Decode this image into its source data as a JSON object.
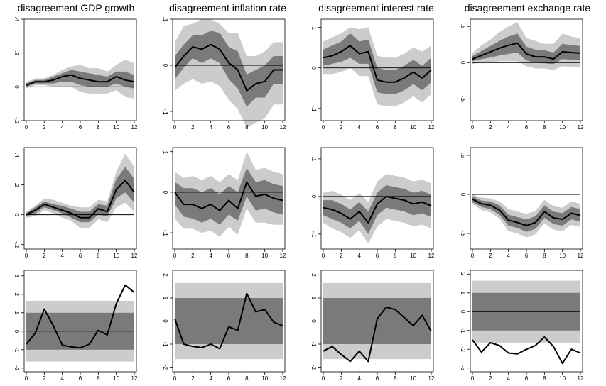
{
  "column_titles": [
    "disagreement GDP growth",
    "disagreement inflation rate",
    "disagreement interest rate",
    "disagreement exchange rate"
  ],
  "colors": {
    "outer_band": "#cccccc",
    "inner_band": "#7a7a7a",
    "line": "#000000",
    "zero": "#000000"
  },
  "chart_data": [
    {
      "type": "area",
      "row": 0,
      "col": 0,
      "x": [
        0,
        1,
        2,
        3,
        4,
        5,
        6,
        7,
        8,
        9,
        10,
        11,
        12
      ],
      "ylim": [
        -0.2,
        0.4
      ],
      "yticks": [
        -0.2,
        0,
        0.2,
        0.4
      ],
      "ytick_labels": [
        "-.2",
        "0",
        ".2",
        ".4"
      ],
      "xticks": [
        0,
        2,
        4,
        6,
        8,
        10,
        12
      ],
      "xtick_labels": [
        "0",
        "2",
        "4",
        "6",
        "8",
        "10",
        "12"
      ],
      "y": [
        0.01,
        0.03,
        0.03,
        0.04,
        0.06,
        0.07,
        0.05,
        0.04,
        0.03,
        0.03,
        0.06,
        0.04,
        0.03
      ],
      "inner_lo": [
        0.0,
        0.02,
        0.02,
        0.02,
        0.03,
        0.03,
        0.01,
        0.0,
        0.0,
        0.0,
        0.02,
        0.0,
        -0.01
      ],
      "inner_hi": [
        0.02,
        0.04,
        0.04,
        0.06,
        0.08,
        0.1,
        0.09,
        0.08,
        0.07,
        0.06,
        0.09,
        0.09,
        0.07
      ],
      "outer_lo": [
        -0.01,
        0.01,
        0.01,
        0.0,
        0.0,
        0.0,
        -0.03,
        -0.04,
        -0.04,
        -0.04,
        -0.02,
        -0.06,
        -0.07
      ],
      "outer_hi": [
        0.03,
        0.05,
        0.05,
        0.07,
        0.1,
        0.12,
        0.13,
        0.11,
        0.11,
        0.09,
        0.13,
        0.16,
        0.14
      ]
    },
    {
      "type": "area",
      "row": 0,
      "col": 1,
      "x": [
        0,
        1,
        2,
        3,
        4,
        5,
        6,
        7,
        8,
        9,
        10,
        11,
        12
      ],
      "ylim": [
        -0.12,
        0.1
      ],
      "yticks": [
        -0.1,
        0,
        0.1
      ],
      "ytick_labels": [
        "-.1",
        "0",
        ".1"
      ],
      "xticks": [
        0,
        2,
        4,
        6,
        8,
        10,
        12
      ],
      "xtick_labels": [
        "0",
        "2",
        "4",
        "6",
        "8",
        "10",
        "12"
      ],
      "y": [
        -0.005,
        0.02,
        0.04,
        0.035,
        0.045,
        0.035,
        0.005,
        -0.01,
        -0.055,
        -0.04,
        -0.035,
        -0.01,
        -0.01
      ],
      "inner_lo": [
        -0.03,
        -0.005,
        0.015,
        0.005,
        0.015,
        0.005,
        -0.03,
        -0.05,
        -0.09,
        -0.07,
        -0.07,
        -0.04,
        -0.04
      ],
      "inner_hi": [
        0.02,
        0.045,
        0.065,
        0.065,
        0.075,
        0.07,
        0.04,
        0.03,
        -0.02,
        -0.01,
        0.0,
        0.02,
        0.02
      ],
      "outer_lo": [
        -0.055,
        -0.04,
        -0.03,
        -0.04,
        -0.035,
        -0.045,
        -0.075,
        -0.095,
        -0.135,
        -0.125,
        -0.115,
        -0.085,
        -0.085
      ],
      "outer_hi": [
        0.05,
        0.085,
        0.09,
        0.1,
        0.1,
        0.09,
        0.07,
        0.07,
        0.02,
        0.02,
        0.03,
        0.05,
        0.05
      ]
    },
    {
      "type": "area",
      "row": 0,
      "col": 2,
      "x": [
        0,
        1,
        2,
        3,
        4,
        5,
        6,
        7,
        8,
        9,
        10,
        11,
        12
      ],
      "ylim": [
        -0.13,
        0.12
      ],
      "yticks": [
        -0.1,
        0,
        0.1
      ],
      "ytick_labels": [
        "-.1",
        "0",
        ".1"
      ],
      "xticks": [
        0,
        2,
        4,
        6,
        8,
        10,
        12
      ],
      "xtick_labels": [
        "0",
        "2",
        "4",
        "6",
        "8",
        "10",
        "12"
      ],
      "y": [
        0.025,
        0.03,
        0.04,
        0.055,
        0.035,
        0.04,
        -0.03,
        -0.035,
        -0.035,
        -0.025,
        -0.01,
        -0.025,
        -0.005
      ],
      "inner_lo": [
        0.005,
        0.01,
        0.015,
        0.025,
        0.01,
        0.01,
        -0.06,
        -0.065,
        -0.065,
        -0.055,
        -0.04,
        -0.055,
        -0.035
      ],
      "inner_hi": [
        0.045,
        0.055,
        0.065,
        0.085,
        0.065,
        0.07,
        0.0,
        -0.005,
        -0.005,
        0.005,
        0.02,
        0.005,
        0.025
      ],
      "outer_lo": [
        -0.015,
        -0.015,
        -0.01,
        0.0,
        -0.02,
        -0.02,
        -0.09,
        -0.095,
        -0.095,
        -0.085,
        -0.07,
        -0.085,
        -0.065
      ],
      "outer_hi": [
        0.065,
        0.075,
        0.085,
        0.1,
        0.095,
        0.1,
        0.03,
        0.025,
        0.025,
        0.035,
        0.05,
        0.04,
        0.055
      ]
    },
    {
      "type": "area",
      "row": 0,
      "col": 3,
      "x": [
        0,
        1,
        2,
        3,
        4,
        5,
        6,
        7,
        8,
        9,
        10,
        11,
        12
      ],
      "ylim": [
        -0.8,
        0.6
      ],
      "yticks": [
        -0.5,
        0,
        0.5
      ],
      "ytick_labels": [
        "-.5",
        "0",
        ".5"
      ],
      "xticks": [
        0,
        2,
        4,
        6,
        8,
        10,
        12
      ],
      "xtick_labels": [
        "0",
        "2",
        "4",
        "6",
        "8",
        "10",
        "12"
      ],
      "y": [
        0.05,
        0.1,
        0.15,
        0.2,
        0.24,
        0.27,
        0.12,
        0.08,
        0.08,
        0.05,
        0.15,
        0.14,
        0.13
      ],
      "inner_lo": [
        0.02,
        0.05,
        0.07,
        0.1,
        0.12,
        0.14,
        0.03,
        0.0,
        -0.01,
        -0.02,
        0.05,
        0.04,
        0.04
      ],
      "inner_hi": [
        0.09,
        0.16,
        0.23,
        0.3,
        0.36,
        0.4,
        0.22,
        0.18,
        0.17,
        0.14,
        0.26,
        0.24,
        0.23
      ],
      "outer_lo": [
        -0.02,
        0.0,
        0.0,
        0.02,
        0.02,
        0.02,
        -0.05,
        -0.08,
        -0.08,
        -0.1,
        -0.05,
        -0.06,
        -0.06
      ],
      "outer_hi": [
        0.13,
        0.24,
        0.32,
        0.42,
        0.5,
        0.56,
        0.34,
        0.3,
        0.26,
        0.26,
        0.4,
        0.36,
        0.34
      ]
    },
    {
      "type": "area",
      "row": 1,
      "col": 0,
      "x": [
        0,
        1,
        2,
        3,
        4,
        5,
        6,
        7,
        8,
        9,
        10,
        11,
        12
      ],
      "ylim": [
        -0.23,
        0.45
      ],
      "yticks": [
        -0.2,
        0,
        0.2,
        0.4
      ],
      "ytick_labels": [
        "-.2",
        "0",
        ".2",
        ".4"
      ],
      "xticks": [
        0,
        2,
        4,
        6,
        8,
        10,
        12
      ],
      "xtick_labels": [
        "0",
        "2",
        "4",
        "6",
        "8",
        "10",
        "12"
      ],
      "y": [
        0.0,
        0.03,
        0.07,
        0.05,
        0.03,
        0.01,
        -0.02,
        -0.02,
        0.04,
        0.02,
        0.17,
        0.23,
        0.15
      ],
      "inner_lo": [
        -0.01,
        0.01,
        0.05,
        0.03,
        0.01,
        -0.02,
        -0.05,
        -0.05,
        0.0,
        -0.01,
        0.11,
        0.15,
        0.08
      ],
      "inner_hi": [
        0.01,
        0.05,
        0.09,
        0.07,
        0.06,
        0.04,
        0.02,
        0.02,
        0.07,
        0.06,
        0.24,
        0.32,
        0.24
      ],
      "outer_lo": [
        -0.02,
        -0.01,
        0.03,
        0.01,
        -0.02,
        -0.04,
        -0.09,
        -0.09,
        -0.03,
        -0.05,
        0.05,
        0.08,
        0.02
      ],
      "outer_hi": [
        0.02,
        0.06,
        0.11,
        0.1,
        0.08,
        0.06,
        0.05,
        0.05,
        0.1,
        0.09,
        0.29,
        0.41,
        0.32
      ]
    },
    {
      "type": "area",
      "row": 1,
      "col": 1,
      "x": [
        0,
        1,
        2,
        3,
        4,
        5,
        6,
        7,
        8,
        9,
        10,
        11,
        12
      ],
      "ylim": [
        -0.14,
        0.11
      ],
      "yticks": [
        -0.1,
        0,
        0.1
      ],
      "ytick_labels": [
        "-.1",
        "0",
        ".1"
      ],
      "xticks": [
        0,
        2,
        4,
        6,
        8,
        10,
        12
      ],
      "xtick_labels": [
        "0",
        "2",
        "4",
        "6",
        "8",
        "10",
        "12"
      ],
      "y": [
        0.0,
        -0.03,
        -0.03,
        -0.04,
        -0.03,
        -0.045,
        -0.02,
        -0.04,
        0.025,
        -0.01,
        -0.005,
        -0.015,
        -0.02
      ],
      "inner_lo": [
        -0.03,
        -0.06,
        -0.065,
        -0.075,
        -0.065,
        -0.08,
        -0.055,
        -0.07,
        -0.01,
        -0.045,
        -0.04,
        -0.05,
        -0.055
      ],
      "inner_hi": [
        0.025,
        0.01,
        0.01,
        0.0,
        0.01,
        -0.005,
        0.015,
        0.0,
        0.06,
        0.025,
        0.03,
        0.02,
        0.015
      ],
      "outer_lo": [
        -0.065,
        -0.09,
        -0.09,
        -0.1,
        -0.095,
        -0.11,
        -0.085,
        -0.105,
        -0.04,
        -0.075,
        -0.075,
        -0.08,
        -0.08
      ],
      "outer_hi": [
        0.05,
        0.035,
        0.04,
        0.03,
        0.04,
        0.025,
        0.045,
        0.03,
        0.1,
        0.055,
        0.06,
        0.05,
        0.045
      ]
    },
    {
      "type": "area",
      "row": 1,
      "col": 2,
      "x": [
        0,
        1,
        2,
        3,
        4,
        5,
        6,
        7,
        8,
        9,
        10,
        11,
        12
      ],
      "ylim": [
        -0.14,
        0.13
      ],
      "yticks": [
        -0.1,
        0,
        0.1
      ],
      "ytick_labels": [
        "-.1",
        "0",
        ".1"
      ],
      "xticks": [
        0,
        2,
        4,
        6,
        8,
        10,
        12
      ],
      "xtick_labels": [
        "0",
        "2",
        "4",
        "6",
        "8",
        "10",
        "12"
      ],
      "y": [
        -0.03,
        -0.035,
        -0.045,
        -0.06,
        -0.04,
        -0.07,
        -0.02,
        0.0,
        -0.005,
        -0.01,
        -0.02,
        -0.015,
        -0.025
      ],
      "inner_lo": [
        -0.05,
        -0.06,
        -0.07,
        -0.085,
        -0.065,
        -0.1,
        -0.05,
        -0.03,
        -0.035,
        -0.04,
        -0.05,
        -0.045,
        -0.055
      ],
      "inner_hi": [
        -0.01,
        -0.01,
        -0.02,
        -0.035,
        -0.015,
        -0.04,
        0.01,
        0.03,
        0.025,
        0.02,
        0.01,
        0.015,
        0.005
      ],
      "outer_lo": [
        -0.07,
        -0.085,
        -0.095,
        -0.11,
        -0.09,
        -0.125,
        -0.08,
        -0.06,
        -0.065,
        -0.07,
        -0.08,
        -0.075,
        -0.085
      ],
      "outer_hi": [
        0.01,
        0.015,
        0.005,
        -0.01,
        0.01,
        -0.015,
        0.04,
        0.06,
        0.055,
        0.05,
        0.04,
        0.045,
        0.035
      ]
    },
    {
      "type": "area",
      "row": 1,
      "col": 3,
      "x": [
        0,
        1,
        2,
        3,
        4,
        5,
        6,
        7,
        8,
        9,
        10,
        11,
        12
      ],
      "ylim": [
        -0.7,
        0.6
      ],
      "yticks": [
        -0.5,
        0,
        0.5
      ],
      "ytick_labels": [
        "-.5",
        "0",
        ".5"
      ],
      "xticks": [
        0,
        2,
        4,
        6,
        8,
        10,
        12
      ],
      "xtick_labels": [
        "0",
        "2",
        "4",
        "6",
        "8",
        "10",
        "12"
      ],
      "y": [
        -0.06,
        -0.12,
        -0.14,
        -0.2,
        -0.33,
        -0.36,
        -0.4,
        -0.36,
        -0.22,
        -0.3,
        -0.32,
        -0.24,
        -0.27
      ],
      "inner_lo": [
        -0.1,
        -0.16,
        -0.19,
        -0.26,
        -0.4,
        -0.43,
        -0.48,
        -0.44,
        -0.3,
        -0.38,
        -0.4,
        -0.32,
        -0.35
      ],
      "inner_hi": [
        -0.02,
        -0.08,
        -0.09,
        -0.14,
        -0.26,
        -0.29,
        -0.32,
        -0.28,
        -0.14,
        -0.22,
        -0.24,
        -0.16,
        -0.19
      ],
      "outer_lo": [
        -0.12,
        -0.2,
        -0.23,
        -0.31,
        -0.47,
        -0.5,
        -0.55,
        -0.51,
        -0.37,
        -0.45,
        -0.47,
        -0.39,
        -0.42
      ],
      "outer_hi": [
        0.0,
        -0.04,
        -0.05,
        -0.09,
        -0.19,
        -0.22,
        -0.25,
        -0.21,
        -0.07,
        -0.15,
        -0.17,
        -0.09,
        -0.12
      ]
    },
    {
      "type": "area",
      "row": 2,
      "col": 0,
      "x": [
        0,
        1,
        2,
        3,
        4,
        5,
        6,
        7,
        8,
        9,
        10,
        11,
        12
      ],
      "ylim": [
        -2.2,
        3.3
      ],
      "yticks": [
        -2,
        -1,
        0,
        1,
        2,
        3
      ],
      "ytick_labels": [
        "-2",
        "-1",
        "0",
        "1",
        "2",
        "3"
      ],
      "xticks": [
        0,
        2,
        4,
        6,
        8,
        10,
        12
      ],
      "xtick_labels": [
        "0",
        "2",
        "4",
        "6",
        "8",
        "10",
        "12"
      ],
      "y": [
        -0.7,
        -0.1,
        1.2,
        0.3,
        -0.75,
        -0.85,
        -0.9,
        -0.7,
        0.05,
        -0.2,
        1.5,
        2.5,
        2.1
      ],
      "band_inner": [
        -1.0,
        1.0
      ],
      "band_outer": [
        -1.65,
        1.65
      ]
    },
    {
      "type": "area",
      "row": 2,
      "col": 1,
      "x": [
        0,
        1,
        2,
        3,
        4,
        5,
        6,
        7,
        8,
        9,
        10,
        11,
        12
      ],
      "ylim": [
        -2.2,
        2.2
      ],
      "yticks": [
        -2,
        -1,
        0,
        1,
        2
      ],
      "ytick_labels": [
        "-2",
        "-1",
        "0",
        "1",
        "2"
      ],
      "xticks": [
        0,
        2,
        4,
        6,
        8,
        10,
        12
      ],
      "xtick_labels": [
        "0",
        "2",
        "4",
        "6",
        "8",
        "10",
        "12"
      ],
      "y": [
        0.1,
        -1.0,
        -1.1,
        -1.15,
        -1.0,
        -1.2,
        -0.25,
        -0.4,
        1.2,
        0.4,
        0.5,
        -0.05,
        -0.2
      ],
      "band_inner": [
        -1.0,
        1.0
      ],
      "band_outer": [
        -1.65,
        1.65
      ]
    },
    {
      "type": "area",
      "row": 2,
      "col": 2,
      "x": [
        0,
        1,
        2,
        3,
        4,
        5,
        6,
        7,
        8,
        9,
        10,
        11,
        12
      ],
      "ylim": [
        -2.2,
        2.2
      ],
      "yticks": [
        -2,
        -1,
        0,
        1,
        2
      ],
      "ytick_labels": [
        "-2",
        "-1",
        "0",
        "1",
        "2"
      ],
      "xticks": [
        0,
        2,
        4,
        6,
        8,
        10,
        12
      ],
      "xtick_labels": [
        "0",
        "2",
        "4",
        "6",
        "8",
        "10",
        "12"
      ],
      "y": [
        -1.3,
        -1.1,
        -1.45,
        -1.75,
        -1.3,
        -1.75,
        0.1,
        0.6,
        0.5,
        0.15,
        -0.2,
        0.25,
        -0.45
      ],
      "band_inner": [
        -1.0,
        1.0
      ],
      "band_outer": [
        -1.65,
        1.65
      ]
    },
    {
      "type": "area",
      "row": 2,
      "col": 3,
      "x": [
        0,
        1,
        2,
        3,
        4,
        5,
        6,
        7,
        8,
        9,
        10,
        11,
        12
      ],
      "ylim": [
        -3.2,
        2.2
      ],
      "yticks": [
        -3,
        -2,
        -1,
        0,
        1,
        2
      ],
      "ytick_labels": [
        "-3",
        "-2",
        "-1",
        "0",
        "1",
        "2"
      ],
      "xticks": [
        0,
        2,
        4,
        6,
        8,
        10,
        12
      ],
      "xtick_labels": [
        "0",
        "2",
        "4",
        "6",
        "8",
        "10",
        "12"
      ],
      "y": [
        -1.5,
        -2.15,
        -1.65,
        -1.8,
        -2.2,
        -2.25,
        -2.0,
        -1.8,
        -1.35,
        -1.85,
        -2.75,
        -2.0,
        -2.2
      ],
      "band_inner": [
        -1.0,
        1.0
      ],
      "band_outer": [
        -1.65,
        1.65
      ]
    }
  ]
}
